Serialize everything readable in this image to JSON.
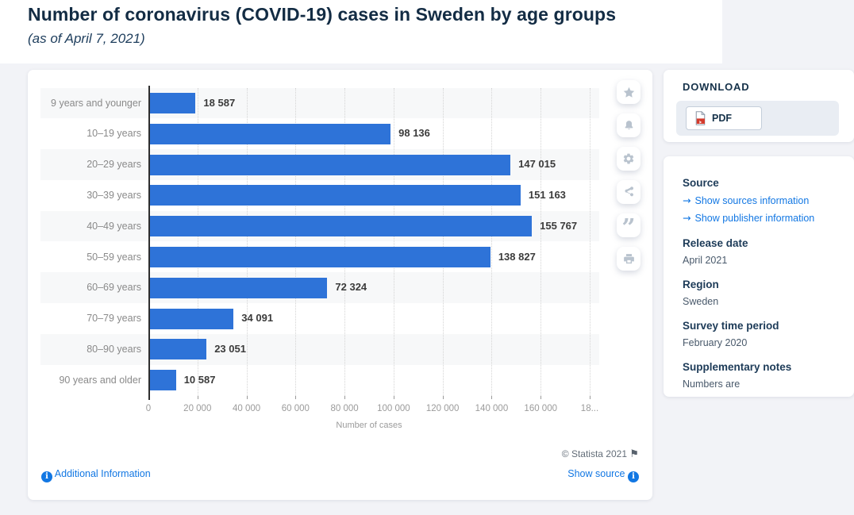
{
  "page": {
    "title": "Number of coronavirus (COVID-19) cases in Sweden by age groups",
    "subtitle": "(as of April 7, 2021)"
  },
  "chart_data": {
    "type": "bar",
    "orientation": "horizontal",
    "title": "Number of coronavirus (COVID-19) cases in Sweden by age groups (as of April 7, 2021)",
    "categories": [
      "9 years and younger",
      "10–19 years",
      "20–29 years",
      "30–39 years",
      "40–49 years",
      "50–59 years",
      "60–69 years",
      "70–79 years",
      "80–90 years",
      "90 years and older"
    ],
    "values": [
      18587,
      98136,
      147015,
      151163,
      155767,
      138827,
      72324,
      34091,
      23051,
      10587
    ],
    "value_labels": [
      "18 587",
      "98 136",
      "147 015",
      "151 163",
      "155 767",
      "138 827",
      "72 324",
      "34 091",
      "23 051",
      "10 587"
    ],
    "xlabel": "Number of cases",
    "ylabel": "",
    "x_ticks": [
      "0",
      "20 000",
      "40 000",
      "60 000",
      "80 000",
      "100 000",
      "120 000",
      "140 000",
      "160 000",
      "18..."
    ],
    "xlim": [
      0,
      180000
    ],
    "grid": "dotted-vertical",
    "legend": "none",
    "bar_color": "#2e73d8"
  },
  "chart_footer": {
    "copyright": "© Statista 2021",
    "additional_info_label": "Additional Information",
    "show_source_label": "Show source"
  },
  "toolbar_icons": [
    "star",
    "bell",
    "gear",
    "share",
    "quote",
    "print"
  ],
  "download_panel": {
    "heading": "DOWNLOAD",
    "pdf_label": "PDF"
  },
  "details_panel": {
    "sections": [
      {
        "heading": "Source",
        "links": [
          "Show sources information",
          "Show publisher information"
        ]
      },
      {
        "heading": "Release date",
        "lines": [
          "April 2021"
        ]
      },
      {
        "heading": "Region",
        "lines": [
          "Sweden"
        ]
      },
      {
        "heading": "Survey time period",
        "lines": [
          "February 2020"
        ]
      },
      {
        "heading": "Supplementary notes",
        "lines": [
          "Numbers are"
        ]
      }
    ]
  },
  "icons": {
    "info": "i",
    "flag": "⚑",
    "arrow": "→",
    "quote": "”"
  },
  "colors": {
    "bar": "#2e73d8",
    "title": "#132c44",
    "link": "#1277e3",
    "page_background": "#f2f3f7",
    "pdf_red": "#d33a2c"
  }
}
